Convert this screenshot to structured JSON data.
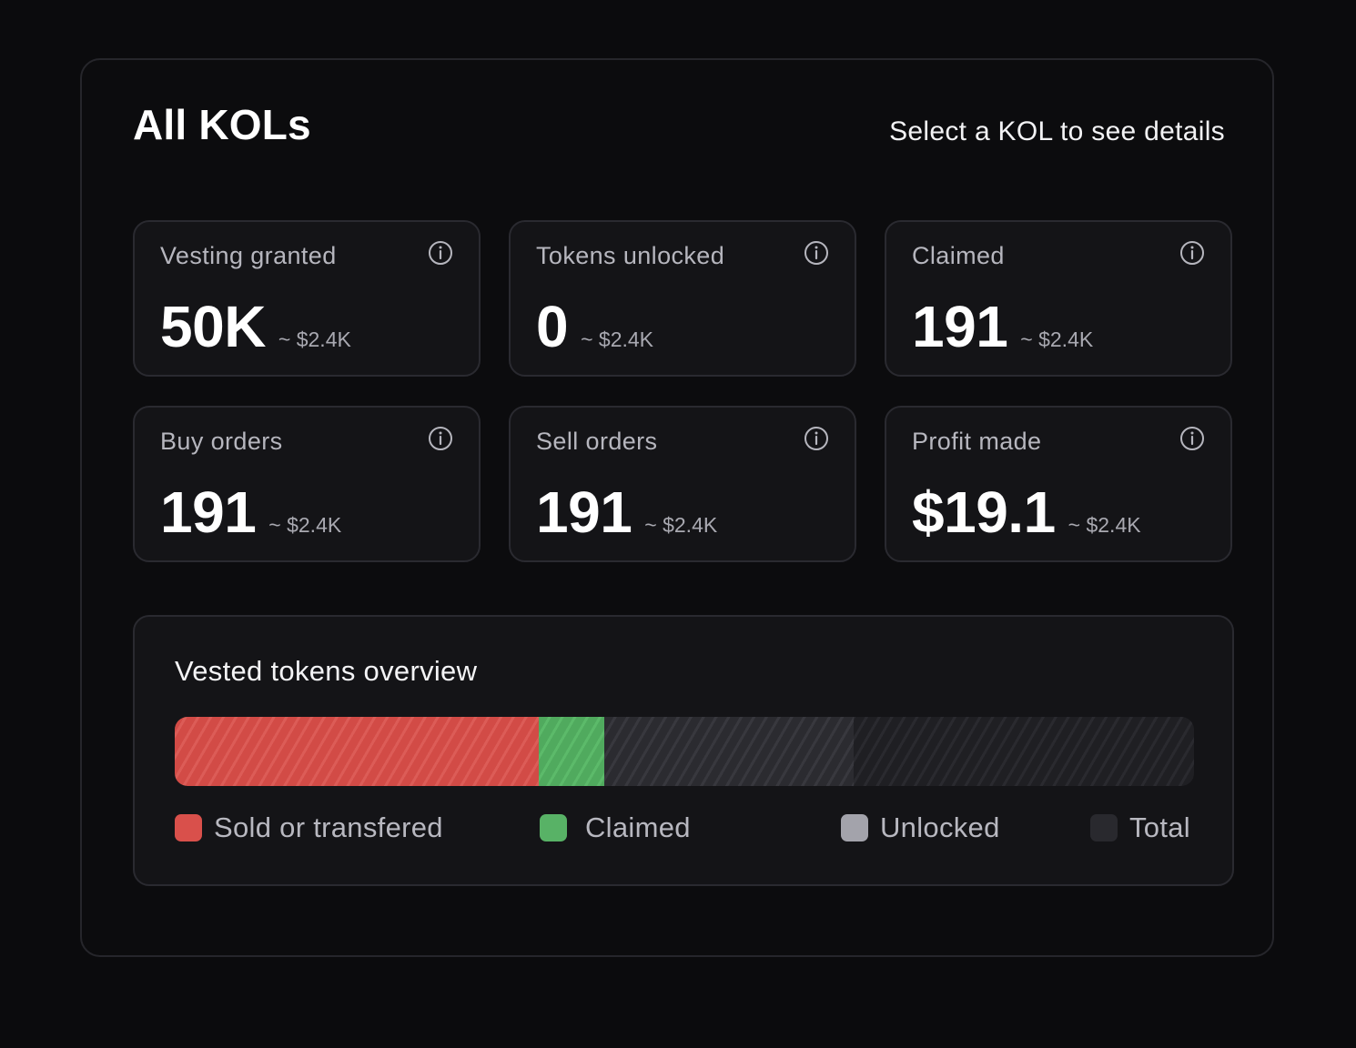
{
  "header": {
    "title": "All KOLs",
    "hint": "Select a KOL to see details"
  },
  "cards": [
    {
      "label": "Vesting granted",
      "value": "50K",
      "sub": "~ $2.4K",
      "icon": "info-icon"
    },
    {
      "label": "Tokens unlocked",
      "value": "0",
      "sub": "~ $2.4K",
      "icon": "info-icon"
    },
    {
      "label": "Claimed",
      "value": "191",
      "sub": "~ $2.4K",
      "icon": "info-icon"
    },
    {
      "label": "Buy orders",
      "value": "191",
      "sub": "~ $2.4K",
      "icon": "info-icon"
    },
    {
      "label": "Sell orders",
      "value": "191",
      "sub": "~ $2.4K",
      "icon": "info-icon"
    },
    {
      "label": "Profit made",
      "value": "$19.1",
      "sub": "~ $2.4K",
      "icon": "info-icon"
    }
  ],
  "overview": {
    "title": "Vested tokens overview",
    "segments": [
      {
        "name": "sold",
        "fraction": 0.357
      },
      {
        "name": "claimed",
        "fraction": 0.064
      },
      {
        "name": "unlocked",
        "fraction": 0.245
      }
    ],
    "legend": [
      {
        "label": "Sold or transfered",
        "color": "#d9504b"
      },
      {
        "label": "Claimed",
        "color": "#58b266"
      },
      {
        "label": "Unlocked",
        "color": "#a3a3ab"
      },
      {
        "label": "Total",
        "color": "#29292e"
      }
    ]
  }
}
